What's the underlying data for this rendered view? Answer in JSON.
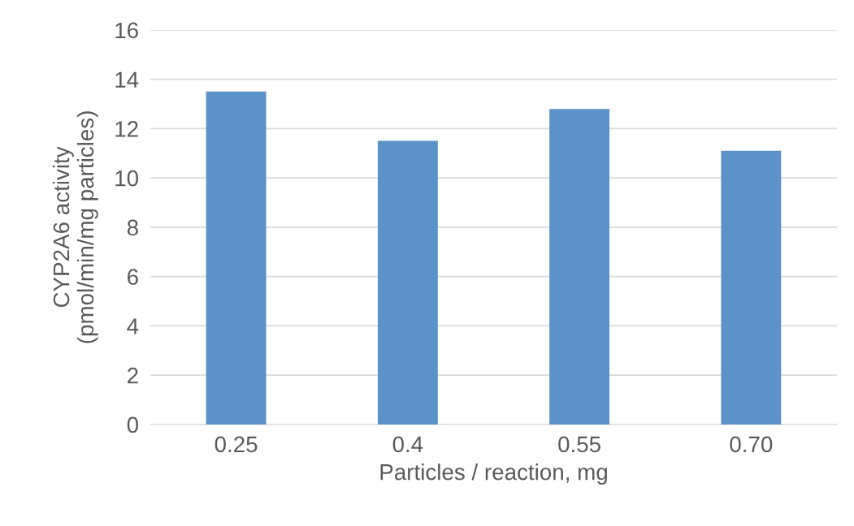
{
  "chart_data": {
    "type": "bar",
    "xlabel": "Particles / reaction, mg",
    "ylabel": "CYP2A6 activity\n(pmol/min/mg particles)",
    "categories": [
      "0.25",
      "0.4",
      "0.55",
      "0.70"
    ],
    "values": [
      13.5,
      11.5,
      12.8,
      11.1
    ],
    "color": "#5b93c9",
    "ylim": [
      0,
      16
    ],
    "yticks": [
      0,
      2,
      4,
      6,
      8,
      10,
      12,
      14,
      16
    ],
    "grid": "y"
  }
}
